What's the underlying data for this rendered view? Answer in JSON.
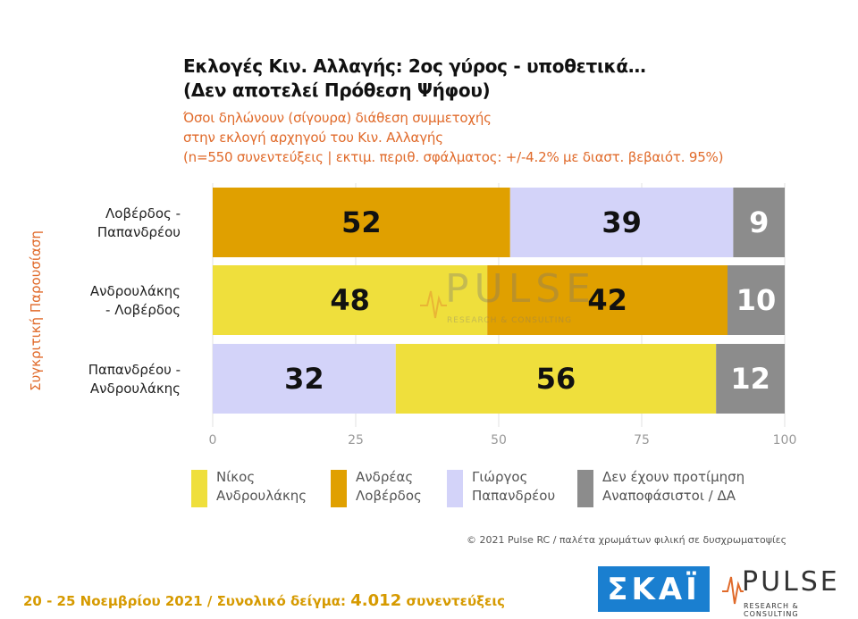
{
  "title_line1": "Εκλογές Κιν. Αλλαγής: 2ος γύρος - υποθετικά…",
  "title_line2": "(Δεν αποτελεί Πρόθεση Ψήφου)",
  "subtitle_line1": "Όσοι δηλώνουν (σίγουρα) διάθεση συμμετοχής",
  "subtitle_line2": "στην εκλογή αρχηγού του Κιν. Αλλαγής",
  "subtitle_line3": "(n=550 συνεντεύξεις | εκτιμ. περιθ. σφάλματος: +/-4.2% με διαστ. βεβαιότ. 95%)",
  "copyright": "© 2021 Pulse RC  /  παλέτα χρωμάτων φιλική σε δυσχρωματοψίες",
  "footer": {
    "dates": "20 - 25 Νοεμβρίου 2021",
    "sep": " / ",
    "sample_label": "Συνολικό δείγμα:",
    "sample_value": "4.012",
    "sample_unit": "συνεντεύξεις"
  },
  "logos": {
    "skai": "ΣΚΑΪ",
    "pulse": "PULSE",
    "pulse_sub": "RESEARCH & CONSULTING"
  },
  "colors": {
    "nikos": "#efdf3c",
    "andreas": "#e0a000",
    "giorgos": "#d3d3f9",
    "undecided": "#8c8c8c",
    "accent": "#e06a2a"
  },
  "chart_data": {
    "type": "bar",
    "orientation": "horizontal",
    "stacked": true,
    "ylabel": "Συγκριτική Παρουσίαση",
    "xlim": [
      0,
      100
    ],
    "xticks": [
      0,
      25,
      50,
      75,
      100
    ],
    "grid": true,
    "legend_position": "bottom",
    "categories": [
      "Λοβέρδος -\nΠαπανδρέου",
      "Ανδρουλάκης\n- Λοβέρδος",
      "Παπανδρέου -\nΑνδρουλάκης"
    ],
    "legend": [
      {
        "key": "nikos",
        "label": "Νίκος\nΑνδρουλάκης"
      },
      {
        "key": "andreas",
        "label": "Ανδρέας\nΛοβέρδος"
      },
      {
        "key": "giorgos",
        "label": "Γιώργος\nΠαπανδρέου"
      },
      {
        "key": "undecided",
        "label": "Δεν έχουν προτίμηση\nΑναποφάσιστοι / ΔΑ"
      }
    ],
    "bars": [
      {
        "segments": [
          {
            "key": "andreas",
            "value": 52
          },
          {
            "key": "giorgos",
            "value": 39
          },
          {
            "key": "undecided",
            "value": 9
          }
        ]
      },
      {
        "segments": [
          {
            "key": "nikos",
            "value": 48
          },
          {
            "key": "andreas",
            "value": 42
          },
          {
            "key": "undecided",
            "value": 10
          }
        ]
      },
      {
        "segments": [
          {
            "key": "giorgos",
            "value": 32
          },
          {
            "key": "nikos",
            "value": 56
          },
          {
            "key": "undecided",
            "value": 12
          }
        ]
      }
    ]
  }
}
